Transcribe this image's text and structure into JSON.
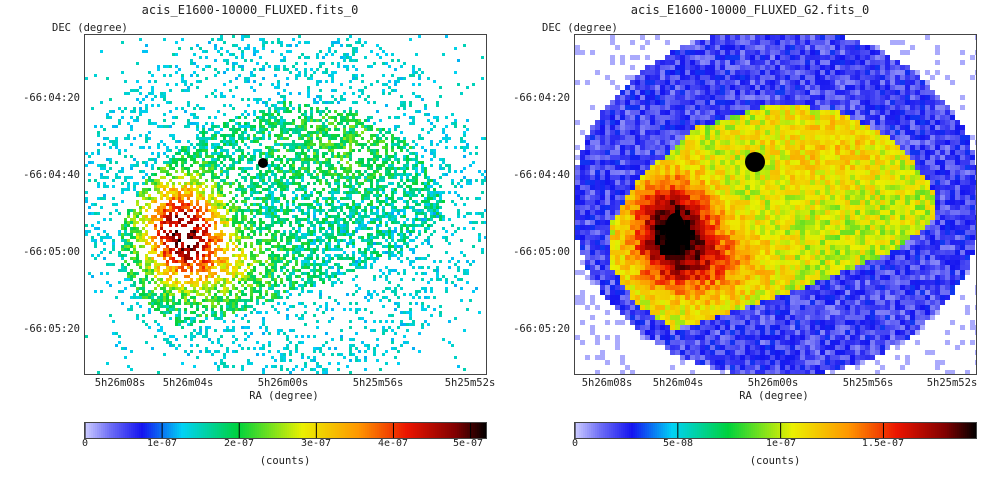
{
  "chart_data": [
    {
      "type": "heatmap",
      "title": "acis_E1600-10000_FLUXED.fits_0",
      "xlabel": "RA (degree)",
      "ylabel": "DEC (degree)",
      "x_ticks": [
        "5h26m08s",
        "5h26m04s",
        "5h26m00s",
        "5h25m56s",
        "5h25m52s"
      ],
      "y_ticks": [
        "-66:04:20",
        "-66:04:40",
        "-66:05:00",
        "-66:05:20"
      ],
      "colorbar": {
        "ticks": [
          "0",
          "1e-07",
          "2e-07",
          "3e-07",
          "4e-07",
          "5e-07"
        ],
        "tick_values": [
          0,
          1e-07,
          2e-07,
          3e-07,
          4e-07,
          5e-07
        ],
        "range": [
          0,
          5.2e-07
        ],
        "unit": "(counts)"
      },
      "style": "sparse pixels"
    },
    {
      "type": "heatmap",
      "title": "acis_E1600-10000_FLUXED_G2.fits_0",
      "xlabel": "RA (degree)",
      "ylabel": "DEC (degree)",
      "x_ticks": [
        "5h26m08s",
        "5h26m04s",
        "5h26m00s",
        "5h25m56s",
        "5h25m52s"
      ],
      "y_ticks": [
        "-66:04:20",
        "-66:04:40",
        "-66:05:00",
        "-66:05:20"
      ],
      "colorbar": {
        "ticks": [
          "0",
          "5e-08",
          "1e-07",
          "1.5e-07"
        ],
        "tick_values": [
          0,
          5e-08,
          1e-07,
          1.5e-07
        ],
        "range": [
          0,
          1.95e-07
        ],
        "unit": "(counts)"
      },
      "style": "smoothed"
    }
  ]
}
